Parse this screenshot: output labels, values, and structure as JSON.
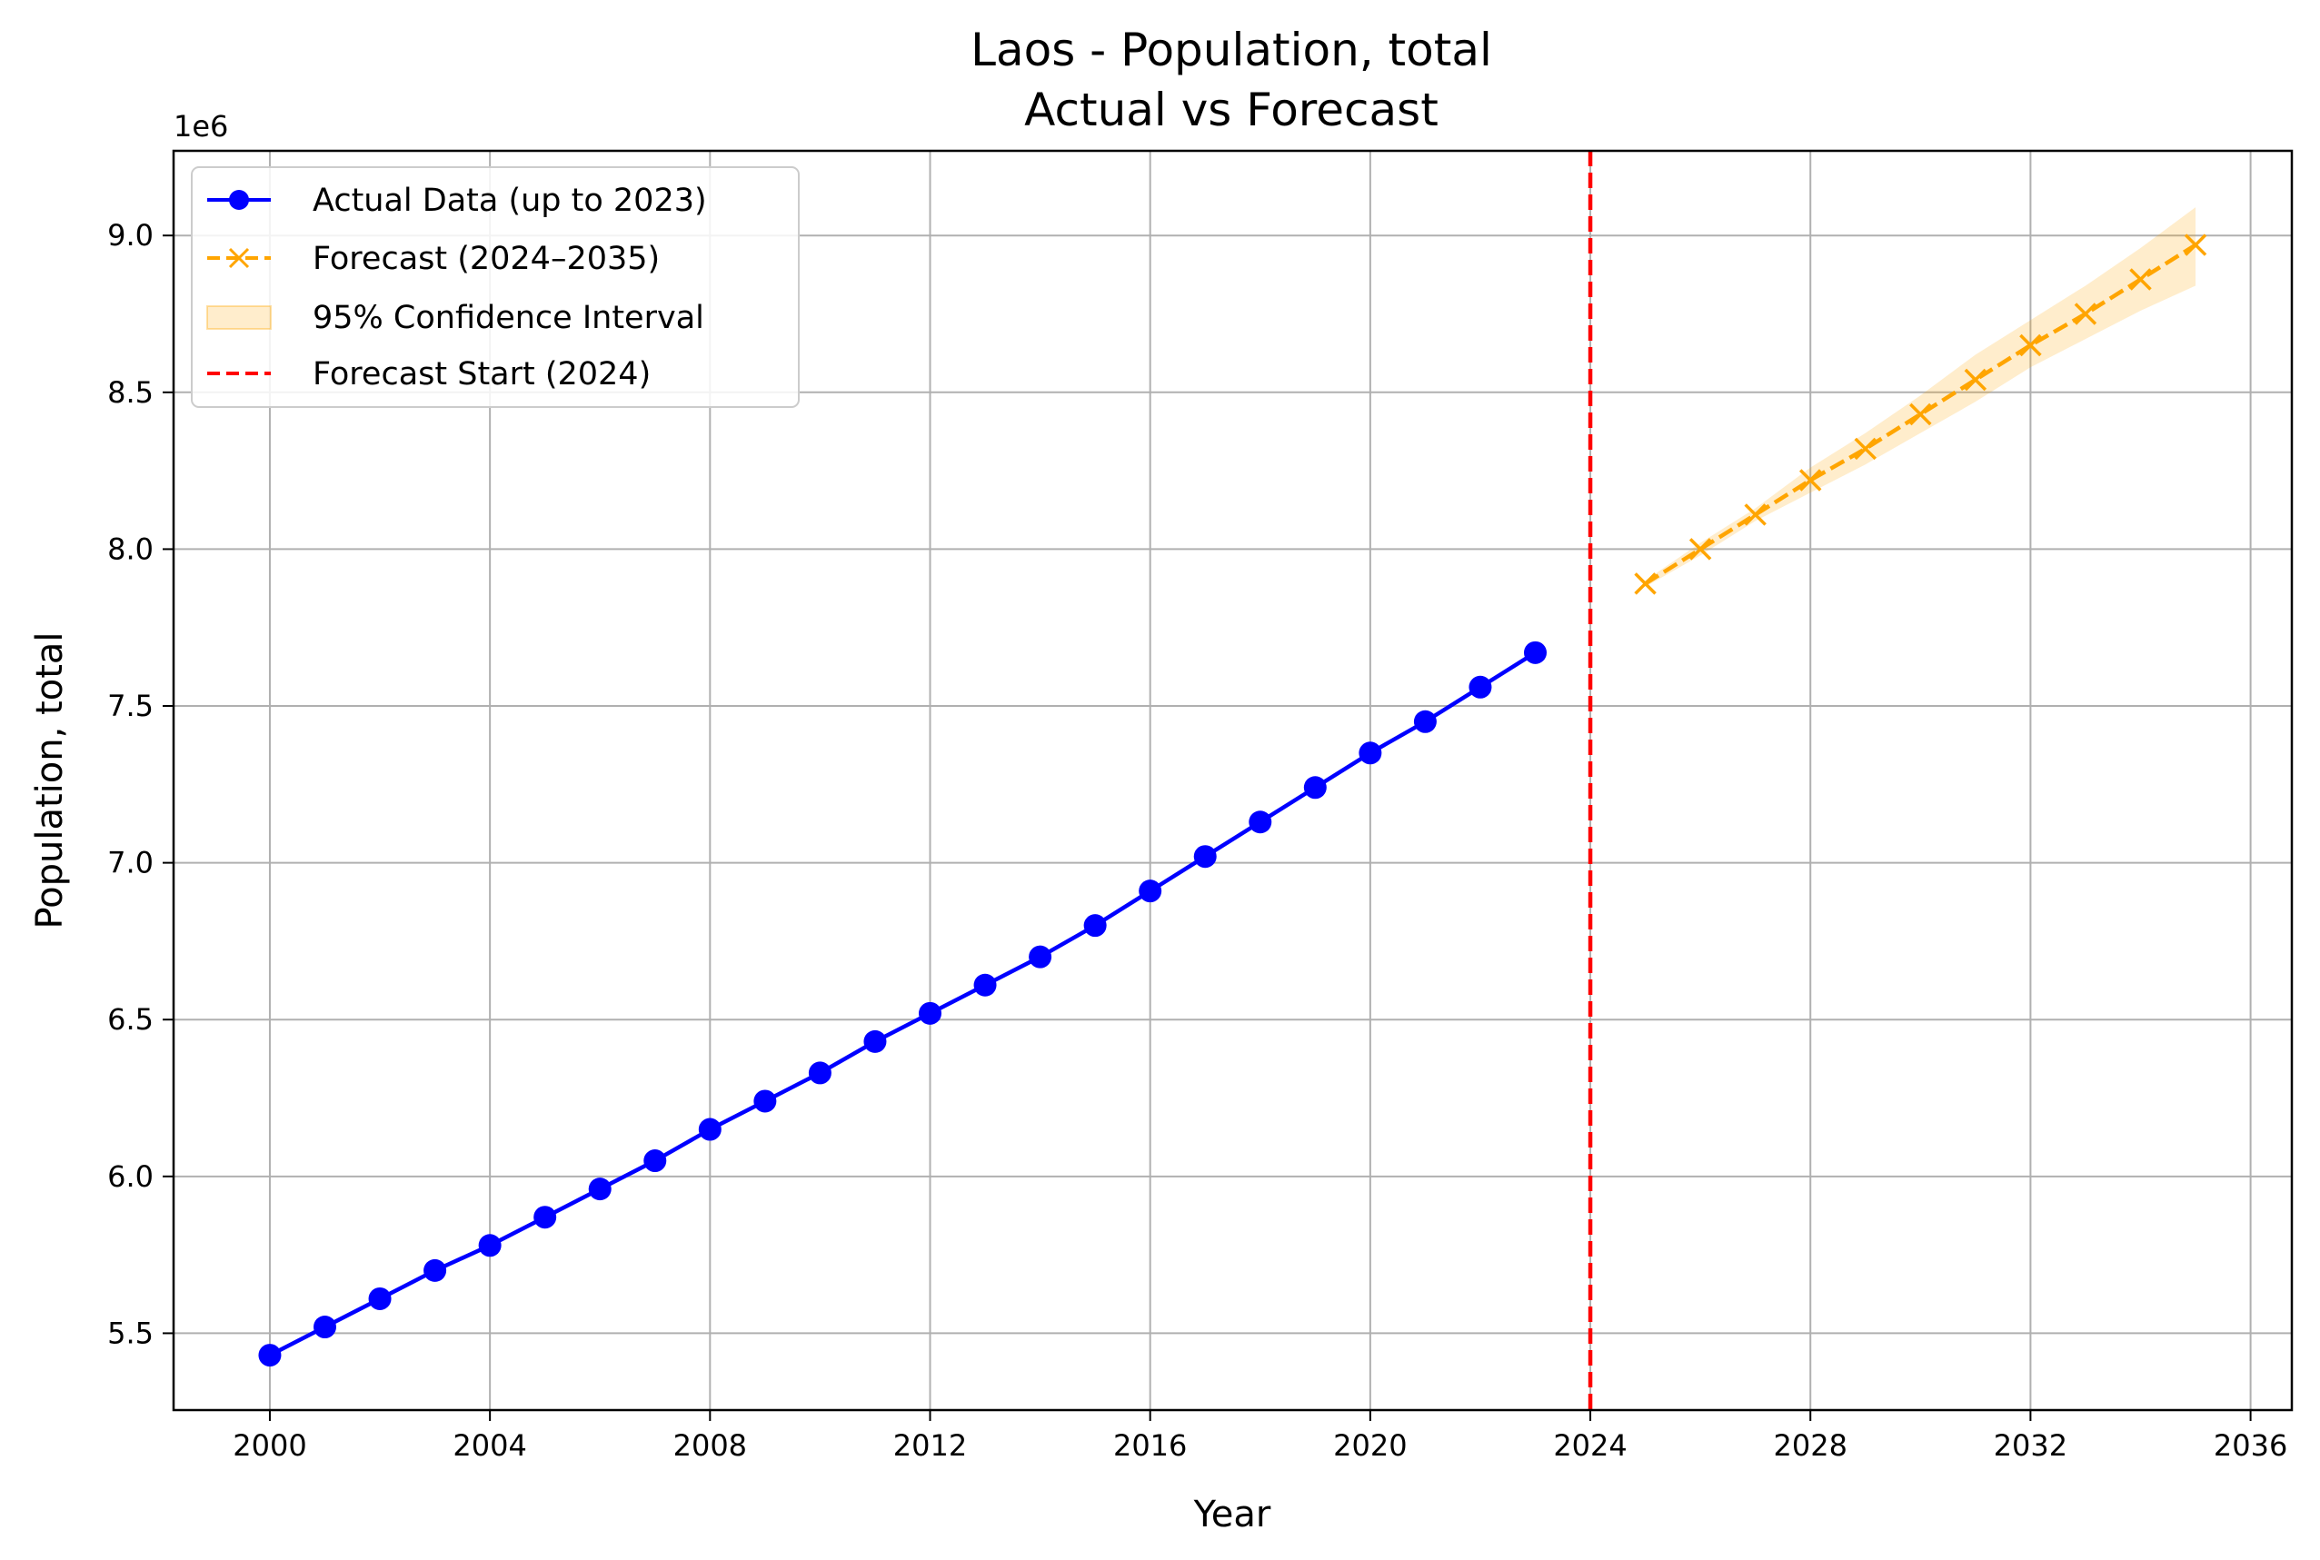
{
  "chart_data": {
    "type": "line",
    "title": "Laos - Population, total",
    "subtitle": "Actual vs Forecast",
    "xlabel": "Year",
    "ylabel": "Population, total",
    "y_offset_label": "1e6",
    "xlim": [
      1998.25,
      2036.75
    ],
    "ylim": [
      5.255,
      9.27
    ],
    "x_ticks": [
      "2000",
      "2004",
      "2008",
      "2012",
      "2016",
      "2020",
      "2024",
      "2028",
      "2032",
      "2036"
    ],
    "y_ticks": [
      "5.5",
      "6.0",
      "6.5",
      "7.0",
      "7.5",
      "8.0",
      "8.5",
      "9.0"
    ],
    "grid": true,
    "legend_position": "top-left",
    "series": [
      {
        "name": "Actual Data (up to 2023)",
        "color": "#0000ff",
        "style": "solid",
        "marker": "circle",
        "x": [
          2000,
          2001,
          2002,
          2003,
          2004,
          2005,
          2006,
          2007,
          2008,
          2009,
          2010,
          2011,
          2012,
          2013,
          2014,
          2015,
          2016,
          2017,
          2018,
          2019,
          2020,
          2021,
          2022,
          2023
        ],
        "values": [
          5.43,
          5.52,
          5.61,
          5.7,
          5.78,
          5.87,
          5.96,
          6.05,
          6.15,
          6.24,
          6.33,
          6.43,
          6.52,
          6.61,
          6.7,
          6.8,
          6.91,
          7.02,
          7.13,
          7.24,
          7.35,
          7.45,
          7.56,
          7.67
        ]
      },
      {
        "name": "Forecast (2024–2035)",
        "color": "#ffa500",
        "style": "dashed",
        "marker": "x",
        "x": [
          2025,
          2026,
          2027,
          2028,
          2029,
          2030,
          2031,
          2032,
          2033,
          2034,
          2035
        ],
        "values": [
          7.89,
          8.0,
          8.11,
          8.22,
          8.32,
          8.43,
          8.54,
          8.65,
          8.75,
          8.86,
          8.97
        ]
      }
    ],
    "confidence_interval": {
      "name": "95% Confidence Interval",
      "color": "#ffa500",
      "x": [
        2025,
        2026,
        2027,
        2028,
        2029,
        2030,
        2031,
        2032,
        2033,
        2034,
        2035
      ],
      "lower": [
        7.88,
        7.98,
        8.09,
        8.18,
        8.27,
        8.37,
        8.47,
        8.58,
        8.67,
        8.76,
        8.84
      ],
      "upper": [
        7.9,
        8.02,
        8.13,
        8.26,
        8.37,
        8.49,
        8.62,
        8.73,
        8.84,
        8.96,
        9.09
      ]
    },
    "forecast_start": {
      "name": "Forecast Start (2024)",
      "x": 2024,
      "color": "#ff0000",
      "style": "dashed"
    }
  }
}
